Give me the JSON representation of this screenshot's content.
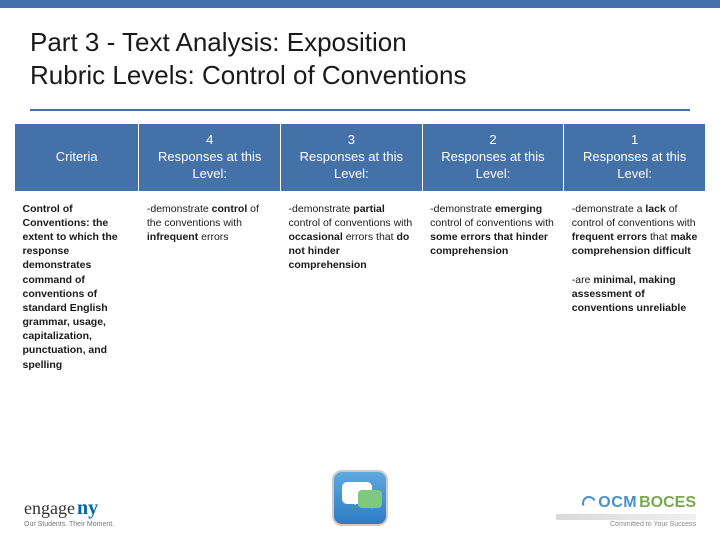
{
  "title": {
    "line1": "Part 3 - Text Analysis: Exposition",
    "line2": "Rubric Levels: Control of Conventions"
  },
  "table": {
    "headers": {
      "criteria": "Criteria",
      "levels": [
        {
          "num": "4",
          "txt": "Responses at this Level:"
        },
        {
          "num": "3",
          "txt": "Responses at this Level:"
        },
        {
          "num": "2",
          "txt": "Responses at this Level:"
        },
        {
          "num": "1",
          "txt": "Responses at this Level:"
        }
      ]
    },
    "row": {
      "criteria_html": "<span class='bold'>Control of Conventions: the extent to which the response demonstrates command of conventions of standard English grammar, usage, capitalization, punctuation, and spelling</span>",
      "cells": [
        "-demonstrate <span class='bold'>control</span> of the conventions with <span class='bold'>infrequent</span> errors",
        "-demonstrate <span class='bold'>partial</span> control of conventions with <span class='bold'>occasional</span> errors that <span class='bold'>do not hinder comprehension</span>",
        "-demonstrate <span class='bold'>emerging</span> control of conventions with <span class='bold'>some errors that hinder comprehension</span>",
        "-demonstrate a <span class='bold'>lack</span> of control of conventions with <span class='bold'>frequent errors</span> that <span class='bold'>make comprehension difficult</span><br><br>-are <span class='bold'>minimal, making assessment of conventions unreliable</span>"
      ]
    }
  },
  "footer": {
    "engage": "engage",
    "ny": "ny",
    "tagline": "Our Students. Their Moment.",
    "ocm": "OCM",
    "boces": "BOCES",
    "ocm_tag": "Committed to Your Success"
  },
  "colors": {
    "accent": "#4472a8",
    "text": "#1a1a1a"
  }
}
